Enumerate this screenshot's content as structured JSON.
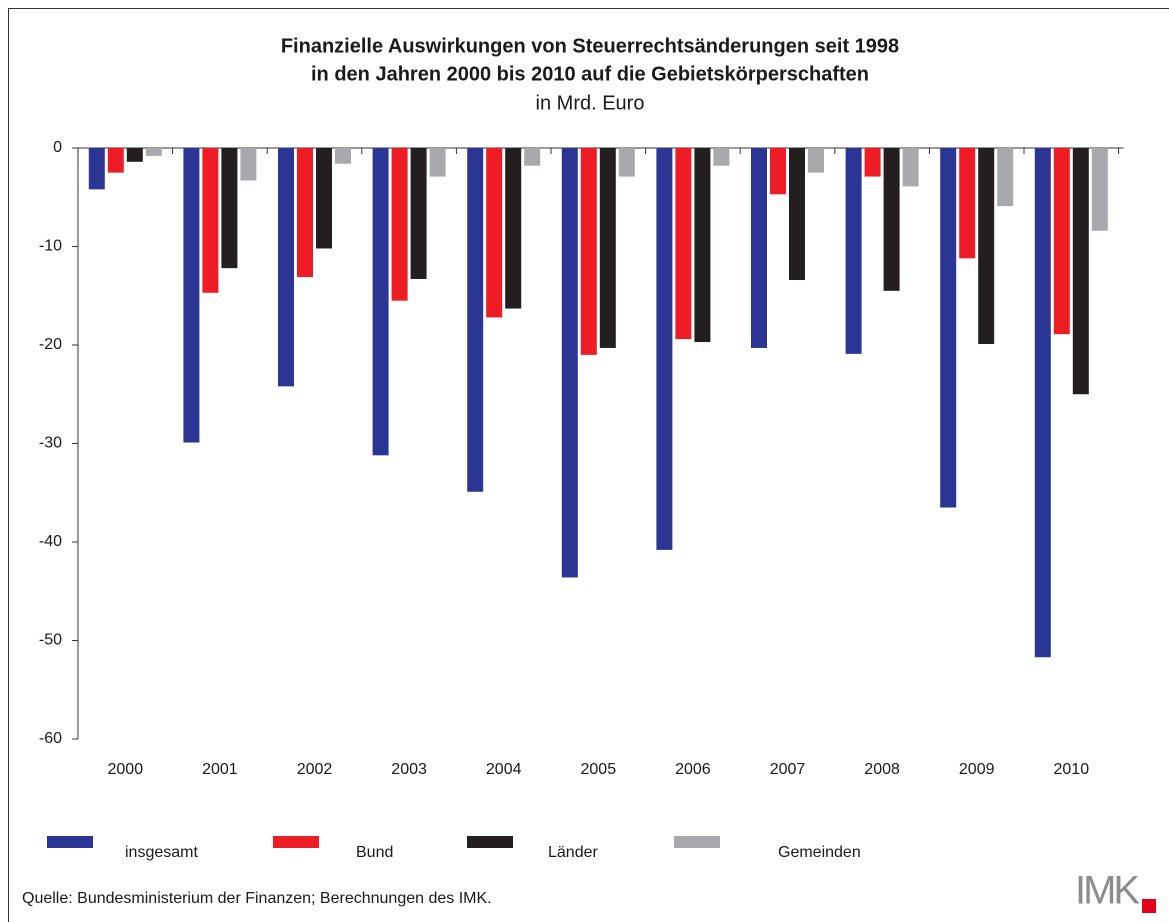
{
  "chart_data": {
    "type": "bar",
    "title": [
      "Finanzielle Auswirkungen von Steuerrechtsänderungen seit 1998",
      "in den Jahren 2000 bis 2010 auf die Gebietskörperschaften"
    ],
    "subtitle": "in Mrd. Euro",
    "categories": [
      "2000",
      "2001",
      "2002",
      "2003",
      "2004",
      "2005",
      "2006",
      "2007",
      "2008",
      "2009",
      "2010"
    ],
    "series": [
      {
        "name": "insgesamt",
        "color": "#2b3593",
        "values": [
          -4.2,
          -29.9,
          -24.2,
          -31.2,
          -34.9,
          -43.6,
          -40.8,
          -20.3,
          -20.9,
          -36.5,
          -51.7
        ]
      },
      {
        "name": "Bund",
        "color": "#ee1c25",
        "values": [
          -2.5,
          -14.7,
          -13.1,
          -15.5,
          -17.2,
          -21.0,
          -19.4,
          -4.7,
          -2.9,
          -11.2,
          -18.9
        ]
      },
      {
        "name": "Länder",
        "color": "#231f20",
        "values": [
          -1.4,
          -12.2,
          -10.2,
          -13.3,
          -16.3,
          -20.3,
          -19.7,
          -13.4,
          -14.5,
          -19.9,
          -25.0
        ]
      },
      {
        "name": "Gemeinden",
        "color": "#a7a9ac",
        "values": [
          -0.8,
          -3.3,
          -1.6,
          -2.9,
          -1.8,
          -2.9,
          -1.8,
          -2.5,
          -3.9,
          -5.9,
          -8.4
        ]
      }
    ],
    "ylim": [
      -60,
      0
    ],
    "yticks": [
      0,
      -10,
      -20,
      -30,
      -40,
      -50,
      -60
    ],
    "source": "Quelle: Bundesministerium der Finanzen; Berechnungen des IMK.",
    "logo": "IMK"
  }
}
